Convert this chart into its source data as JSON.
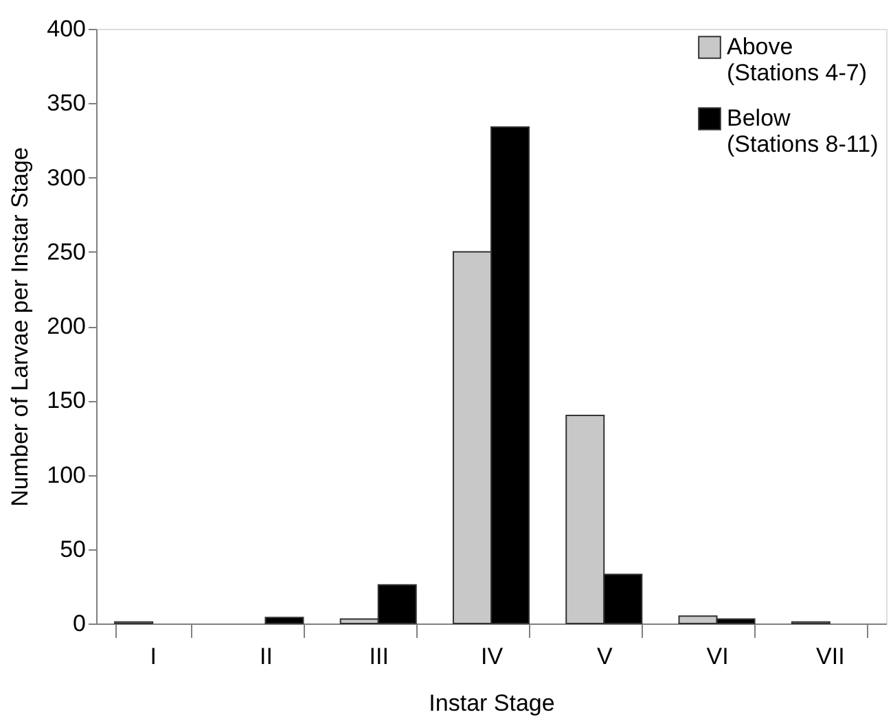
{
  "chart_data": {
    "type": "bar",
    "xlabel": "Instar Stage",
    "ylabel": "Number of Larvae per Instar Stage",
    "categories": [
      "I",
      "II",
      "III",
      "IV",
      "V",
      "VI",
      "VII"
    ],
    "series": [
      {
        "name": "Above (Stations 4-7)",
        "color": "#c8c8c8",
        "values": [
          1,
          null,
          3,
          250,
          140,
          5,
          1
        ]
      },
      {
        "name": "Below (Stations 8-11)",
        "color": "#000000",
        "values": [
          null,
          4,
          26,
          334,
          33,
          3,
          null
        ]
      }
    ],
    "ylim": [
      0,
      400
    ],
    "yticks": [
      0,
      50,
      100,
      150,
      200,
      250,
      300,
      350,
      400
    ],
    "grid": false,
    "legend": "top right"
  }
}
